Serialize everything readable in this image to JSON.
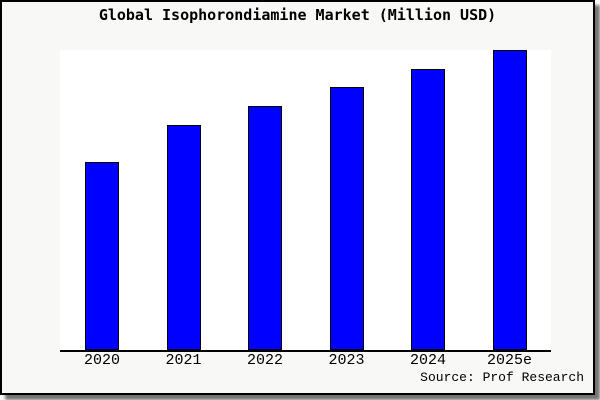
{
  "page": {
    "background": "#ffffff",
    "card_background": "#f8f8f7",
    "card_border_color": "#000000"
  },
  "chart_data": {
    "type": "bar",
    "title": "Global Isophorondiamine Market (Million USD)",
    "categories": [
      "2020",
      "2021",
      "2022",
      "2023",
      "2024",
      "2025e"
    ],
    "values": [
      62.7,
      75.0,
      81.3,
      87.7,
      93.7,
      100.0
    ],
    "xlabel": "",
    "ylabel": "",
    "ylim": [
      0,
      100
    ],
    "grid": false,
    "legend": false,
    "bar_color": "#0000ff",
    "bar_border_color": "#000000",
    "axis_color": "#000000",
    "plot_background": "#ffffff"
  },
  "source": {
    "label": "Source: Prof Research"
  }
}
